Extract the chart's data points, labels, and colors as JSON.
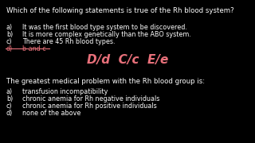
{
  "background_color": "#000000",
  "text_color": "#ffffff",
  "pink_color": "#e8707a",
  "question1": "Which of the following statements is true of the Rh blood system?",
  "q1_options": [
    [
      "a)",
      "It was the first blood type system to be discovered."
    ],
    [
      "b)",
      "It is more complex genetically than the ABO system."
    ],
    [
      "c)",
      "There are 45 Rh blood types."
    ],
    [
      "d)",
      "b and c"
    ]
  ],
  "handwritten": "D/d  C/c  E/e",
  "question2": "The greatest medical problem with the Rh blood group is:",
  "q2_options": [
    [
      "a)",
      "transfusion incompatibility"
    ],
    [
      "b)",
      "chronic anemia for Rh negative individuals"
    ],
    [
      "c)",
      "chronic anemia for Rh positive individuals"
    ],
    [
      "d)",
      "none of the above"
    ]
  ],
  "fig_width": 3.2,
  "fig_height": 1.8,
  "dpi": 100
}
